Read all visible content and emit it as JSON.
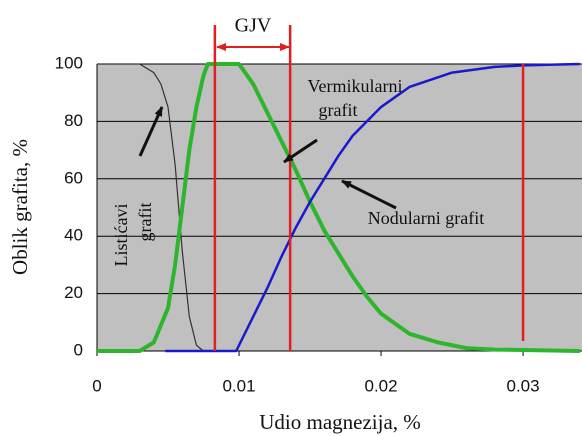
{
  "chart_data": {
    "type": "line",
    "xlabel": "Udio magnezija, %",
    "ylabel": "Oblik grafita, %",
    "xlim": [
      0,
      0.03415
    ],
    "ylim": [
      0,
      100
    ],
    "xticks": [
      0,
      0.01,
      0.02,
      0.03
    ],
    "yticks": [
      0,
      20,
      40,
      60,
      80,
      100
    ],
    "grid": true,
    "background": "#c0c0c0",
    "series": [
      {
        "name": "Listićavi grafit",
        "color": "#333333",
        "x": [
          0,
          0.003,
          0.004,
          0.0045,
          0.005,
          0.0055,
          0.006,
          0.0065,
          0.007,
          0.0075,
          0.008
        ],
        "values": [
          100,
          100,
          97,
          93,
          85,
          65,
          35,
          12,
          2,
          0,
          0
        ]
      },
      {
        "name": "Vermikularni grafit",
        "color": "#2db52d",
        "x": [
          0,
          0.003,
          0.004,
          0.005,
          0.0055,
          0.006,
          0.0065,
          0.007,
          0.0075,
          0.0078,
          0.01,
          0.011,
          0.012,
          0.013,
          0.014,
          0.015,
          0.016,
          0.017,
          0.018,
          0.019,
          0.02,
          0.022,
          0.024,
          0.026,
          0.028,
          0.034
        ],
        "values": [
          0,
          0,
          3,
          15,
          30,
          50,
          70,
          85,
          96,
          100,
          100,
          93,
          83,
          73,
          63,
          52,
          42,
          34,
          26,
          19,
          13,
          6,
          3,
          1,
          0.5,
          0
        ]
      },
      {
        "name": "Nodularni grafit",
        "color": "#1a1acc",
        "x": [
          0.0048,
          0.0098,
          0.011,
          0.012,
          0.013,
          0.014,
          0.015,
          0.016,
          0.017,
          0.018,
          0.02,
          0.022,
          0.025,
          0.028,
          0.03,
          0.034
        ],
        "values": [
          0,
          0,
          12,
          22,
          33,
          43,
          52,
          60,
          68,
          75,
          85,
          92,
          97,
          99,
          99.5,
          100
        ]
      }
    ],
    "vlines": [
      0.0083,
      0.0136,
      0.03
    ],
    "vline_color": "#e02020",
    "annotations": [
      "GJV",
      "Vermikularni",
      "grafit",
      "Nodularni grafit",
      "Listićavi",
      "grafit"
    ]
  }
}
